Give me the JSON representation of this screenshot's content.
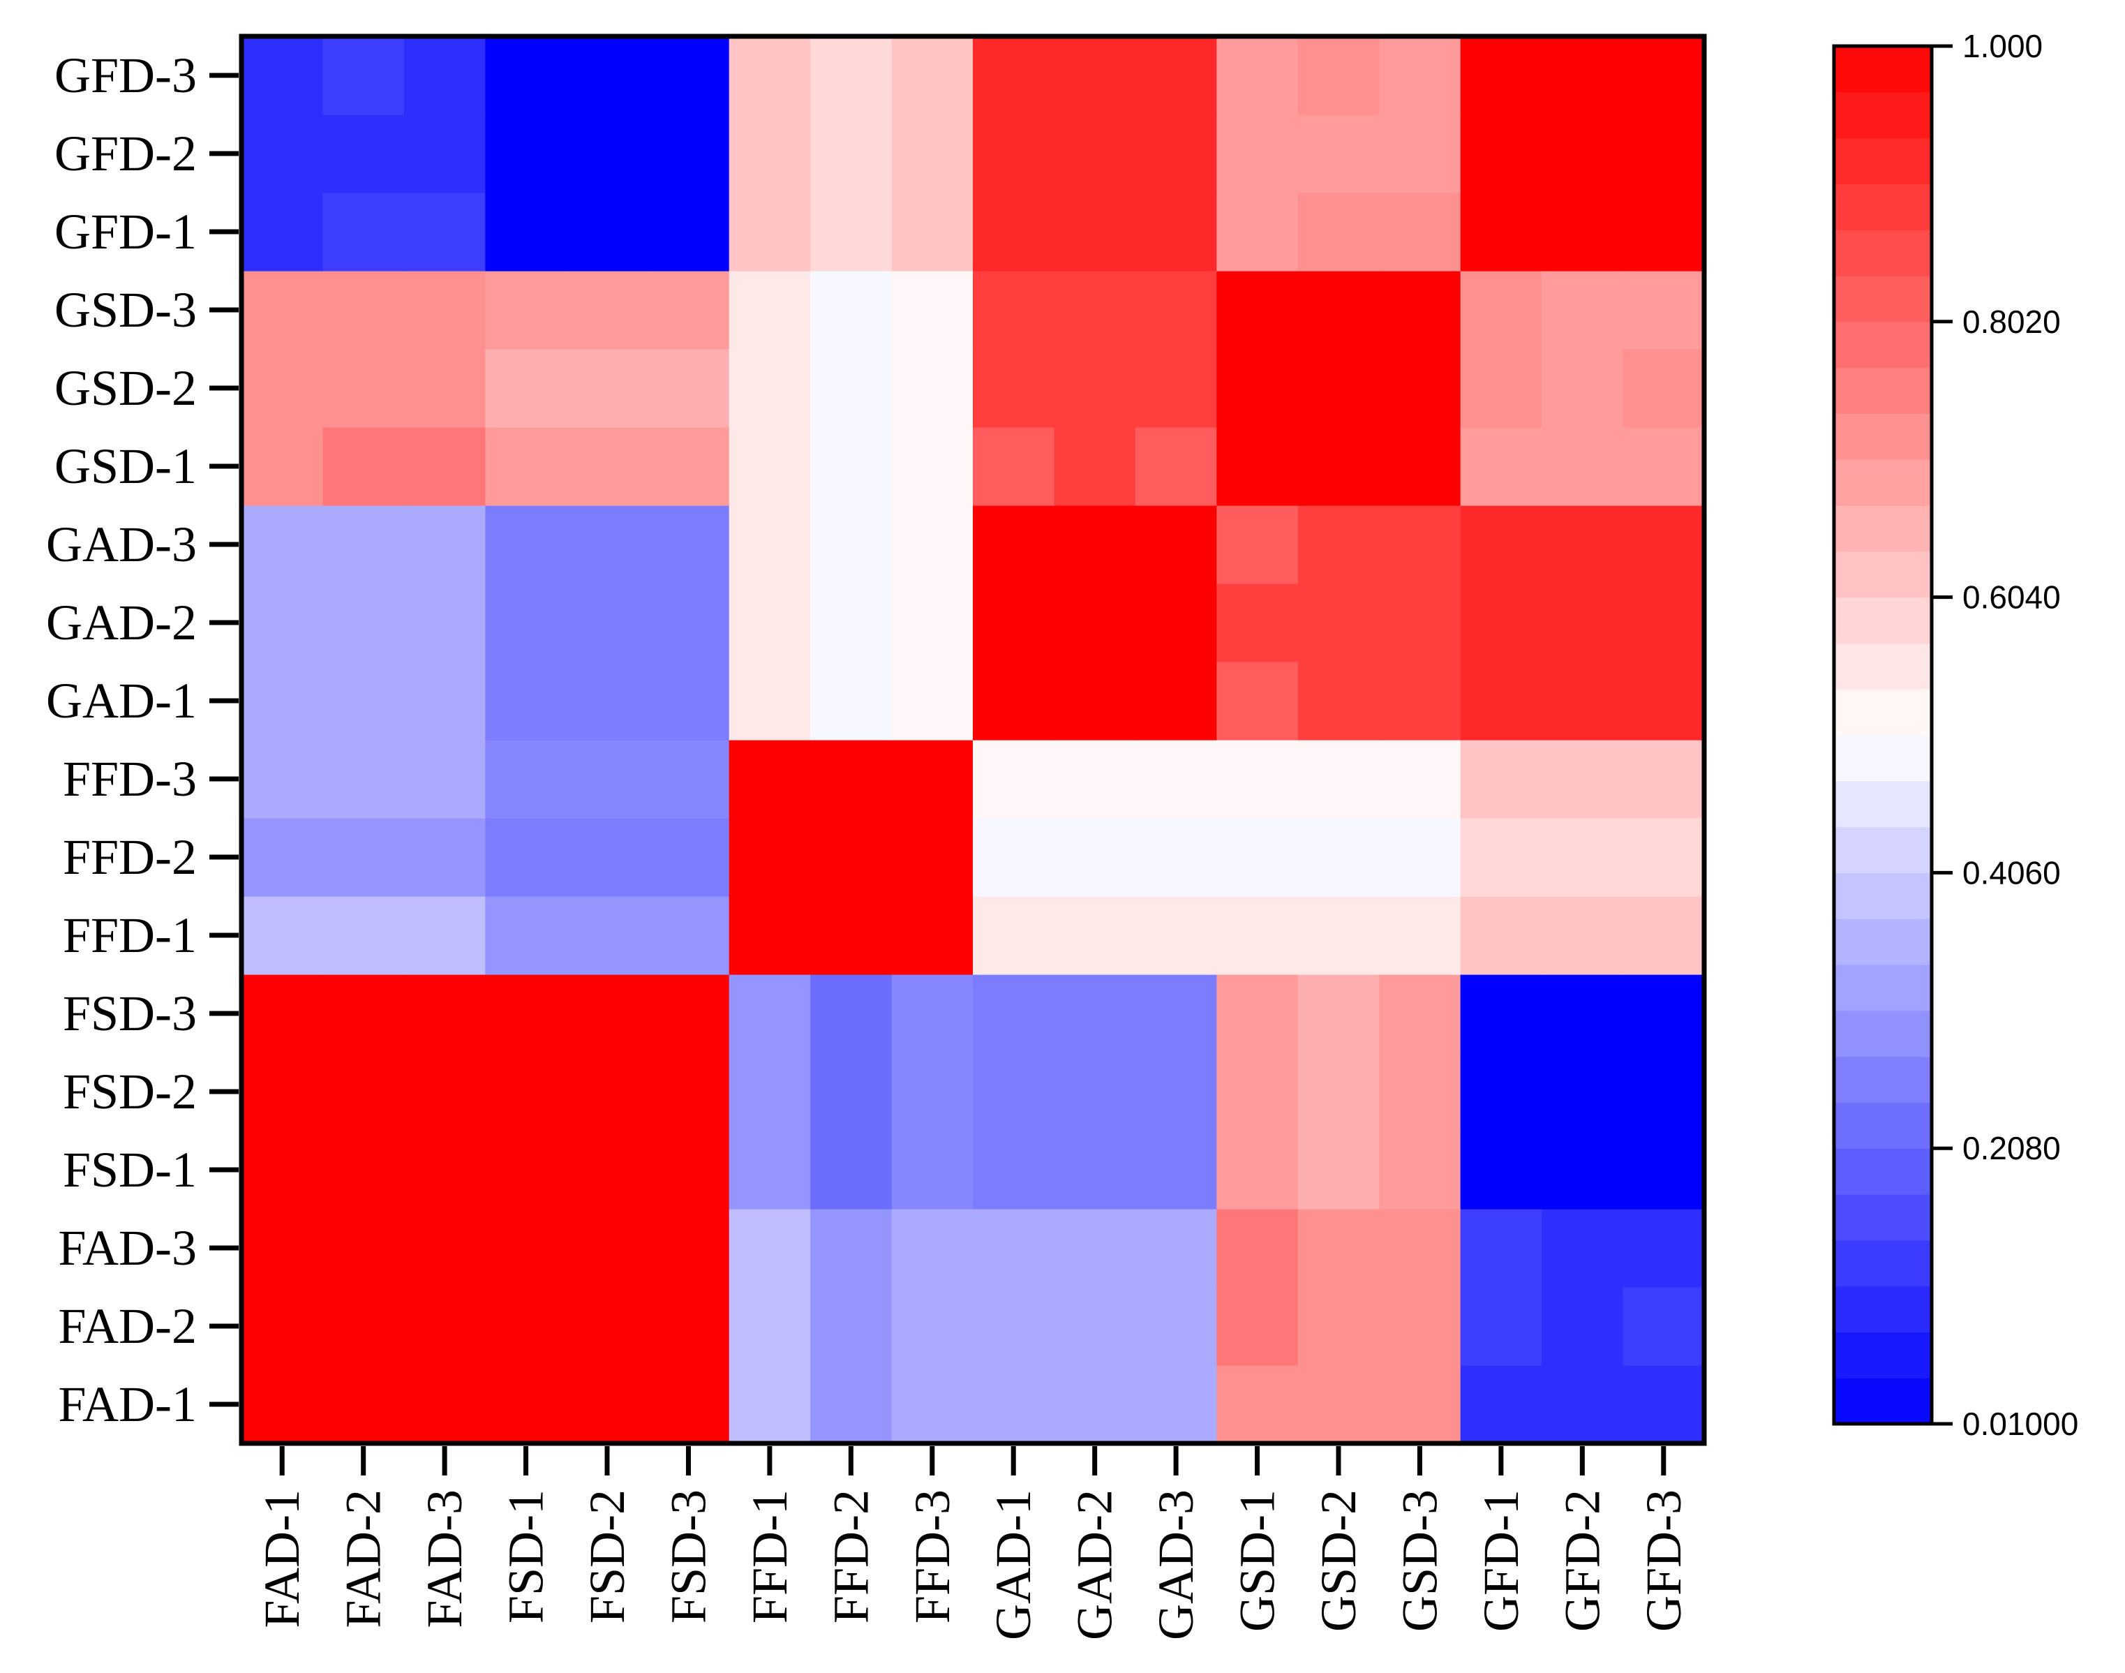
{
  "chart_data": {
    "type": "heatmap",
    "title": "",
    "xlabel": "",
    "ylabel": "",
    "x_labels": [
      "FAD-1",
      "FAD-2",
      "FAD-3",
      "FSD-1",
      "FSD-2",
      "FSD-3",
      "FFD-1",
      "FFD-2",
      "FFD-3",
      "GAD-1",
      "GAD-2",
      "GAD-3",
      "GSD-1",
      "GSD-2",
      "GSD-3",
      "GFD-1",
      "GFD-2",
      "GFD-3"
    ],
    "y_labels": [
      "FAD-1",
      "FAD-2",
      "FAD-3",
      "FSD-1",
      "FSD-2",
      "FSD-3",
      "FFD-1",
      "FFD-2",
      "FFD-3",
      "GAD-1",
      "GAD-2",
      "GAD-3",
      "GSD-1",
      "GSD-2",
      "GSD-3",
      "GFD-1",
      "GFD-2",
      "GFD-3"
    ],
    "values": [
      [
        1.0,
        1.0,
        1.0,
        1.0,
        1.0,
        1.0,
        0.38,
        0.3,
        0.34,
        0.34,
        0.34,
        0.34,
        0.72,
        0.72,
        0.72,
        0.1,
        0.1,
        0.1
      ],
      [
        1.0,
        1.0,
        1.0,
        1.0,
        1.0,
        1.0,
        0.38,
        0.3,
        0.34,
        0.34,
        0.34,
        0.34,
        0.77,
        0.72,
        0.72,
        0.13,
        0.1,
        0.13
      ],
      [
        1.0,
        1.0,
        1.0,
        1.0,
        1.0,
        1.0,
        0.38,
        0.3,
        0.34,
        0.34,
        0.34,
        0.34,
        0.77,
        0.72,
        0.72,
        0.13,
        0.1,
        0.1
      ],
      [
        1.0,
        1.0,
        1.0,
        1.0,
        1.0,
        1.0,
        0.3,
        0.22,
        0.27,
        0.25,
        0.25,
        0.25,
        0.7,
        0.66,
        0.7,
        0.01,
        0.01,
        0.01
      ],
      [
        1.0,
        1.0,
        1.0,
        1.0,
        1.0,
        1.0,
        0.3,
        0.22,
        0.27,
        0.25,
        0.25,
        0.25,
        0.7,
        0.66,
        0.7,
        0.01,
        0.01,
        0.01
      ],
      [
        1.0,
        1.0,
        1.0,
        1.0,
        1.0,
        1.0,
        0.3,
        0.22,
        0.27,
        0.25,
        0.25,
        0.25,
        0.7,
        0.66,
        0.7,
        0.01,
        0.01,
        0.01
      ],
      [
        0.38,
        0.38,
        0.38,
        0.3,
        0.3,
        0.3,
        1.0,
        1.0,
        1.0,
        0.55,
        0.55,
        0.55,
        0.55,
        0.55,
        0.55,
        0.62,
        0.62,
        0.62
      ],
      [
        0.3,
        0.3,
        0.3,
        0.25,
        0.25,
        0.25,
        1.0,
        1.0,
        1.0,
        0.49,
        0.49,
        0.49,
        0.49,
        0.49,
        0.49,
        0.58,
        0.58,
        0.58
      ],
      [
        0.34,
        0.34,
        0.34,
        0.27,
        0.27,
        0.27,
        1.0,
        1.0,
        1.0,
        0.52,
        0.52,
        0.52,
        0.52,
        0.52,
        0.52,
        0.62,
        0.62,
        0.62
      ],
      [
        0.34,
        0.34,
        0.34,
        0.25,
        0.25,
        0.25,
        0.55,
        0.49,
        0.52,
        1.0,
        1.0,
        1.0,
        0.82,
        0.88,
        0.88,
        0.92,
        0.92,
        0.92
      ],
      [
        0.34,
        0.34,
        0.34,
        0.25,
        0.25,
        0.25,
        0.55,
        0.49,
        0.52,
        1.0,
        1.0,
        1.0,
        0.88,
        0.88,
        0.88,
        0.92,
        0.92,
        0.92
      ],
      [
        0.34,
        0.34,
        0.34,
        0.25,
        0.25,
        0.25,
        0.55,
        0.49,
        0.52,
        1.0,
        1.0,
        1.0,
        0.82,
        0.88,
        0.88,
        0.92,
        0.92,
        0.92
      ],
      [
        0.72,
        0.77,
        0.77,
        0.7,
        0.7,
        0.7,
        0.55,
        0.49,
        0.52,
        0.82,
        0.88,
        0.82,
        1.0,
        1.0,
        1.0,
        0.7,
        0.7,
        0.7
      ],
      [
        0.72,
        0.72,
        0.72,
        0.66,
        0.66,
        0.66,
        0.55,
        0.49,
        0.52,
        0.88,
        0.88,
        0.88,
        1.0,
        1.0,
        1.0,
        0.72,
        0.7,
        0.72
      ],
      [
        0.72,
        0.72,
        0.72,
        0.7,
        0.7,
        0.7,
        0.55,
        0.49,
        0.52,
        0.88,
        0.88,
        0.88,
        1.0,
        1.0,
        1.0,
        0.72,
        0.7,
        0.7
      ],
      [
        0.1,
        0.13,
        0.13,
        0.01,
        0.01,
        0.01,
        0.62,
        0.58,
        0.62,
        0.92,
        0.92,
        0.92,
        0.7,
        0.72,
        0.72,
        1.0,
        1.0,
        1.0
      ],
      [
        0.1,
        0.1,
        0.1,
        0.01,
        0.01,
        0.01,
        0.62,
        0.58,
        0.62,
        0.92,
        0.92,
        0.92,
        0.7,
        0.7,
        0.7,
        1.0,
        1.0,
        1.0
      ],
      [
        0.1,
        0.13,
        0.1,
        0.01,
        0.01,
        0.01,
        0.62,
        0.58,
        0.62,
        0.92,
        0.92,
        0.92,
        0.7,
        0.72,
        0.7,
        1.0,
        1.0,
        1.0
      ]
    ],
    "value_range": [
      0.01,
      1.0
    ],
    "colorbar": {
      "ticks": [
        "0.01000",
        "0.2080",
        "0.4060",
        "0.6040",
        "0.8020",
        "1.000"
      ],
      "tick_values": [
        0.01,
        0.208,
        0.406,
        0.604,
        0.802,
        1.0
      ],
      "steps": 30
    },
    "colors": {
      "low": "#0000ff",
      "mid": "#ffffff",
      "high": "#ff0000"
    },
    "grid": false,
    "legend": "right colorbar"
  }
}
